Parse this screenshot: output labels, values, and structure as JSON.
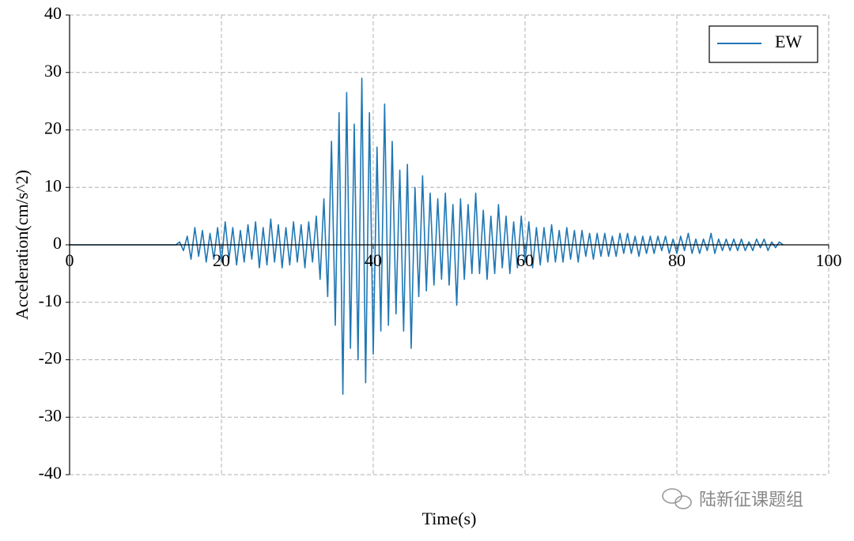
{
  "chart_data": {
    "type": "line",
    "xlabel": "Time(s)",
    "ylabel": "Acceleration(cm/s^2)",
    "watermark": "陆新征课题组",
    "xlim": [
      0,
      100
    ],
    "xticks": [
      0,
      20,
      40,
      60,
      80,
      100
    ],
    "ylim": [
      -40,
      40
    ],
    "yticks": [
      -40,
      -30,
      -20,
      -10,
      0,
      10,
      20,
      30,
      40
    ],
    "grid": true,
    "legend": "upper right",
    "x": [
      0,
      0.5,
      1,
      1.5,
      2,
      2.5,
      3,
      3.5,
      4,
      4.5,
      5,
      5.5,
      6,
      6.5,
      7,
      7.5,
      8,
      8.5,
      9,
      9.5,
      10,
      10.5,
      11,
      11.5,
      12,
      12.5,
      13,
      13.5,
      14,
      14.5,
      15,
      15.5,
      16,
      16.5,
      17,
      17.5,
      18,
      18.5,
      19,
      19.5,
      20,
      20.5,
      21,
      21.5,
      22,
      22.5,
      23,
      23.5,
      24,
      24.5,
      25,
      25.5,
      26,
      26.5,
      27,
      27.5,
      28,
      28.5,
      29,
      29.5,
      30,
      30.5,
      31,
      31.5,
      32,
      32.5,
      33,
      33.5,
      34,
      34.5,
      35,
      35.5,
      36,
      36.5,
      37,
      37.5,
      38,
      38.5,
      39,
      39.5,
      40,
      40.5,
      41,
      41.5,
      42,
      42.5,
      43,
      43.5,
      44,
      44.5,
      45,
      45.5,
      46,
      46.5,
      47,
      47.5,
      48,
      48.5,
      49,
      49.5,
      50,
      50.5,
      51,
      51.5,
      52,
      52.5,
      53,
      53.5,
      54,
      54.5,
      55,
      55.5,
      56,
      56.5,
      57,
      57.5,
      58,
      58.5,
      59,
      59.5,
      60,
      60.5,
      61,
      61.5,
      62,
      62.5,
      63,
      63.5,
      64,
      64.5,
      65,
      65.5,
      66,
      66.5,
      67,
      67.5,
      68,
      68.5,
      69,
      69.5,
      70,
      70.5,
      71,
      71.5,
      72,
      72.5,
      73,
      73.5,
      74,
      74.5,
      75,
      75.5,
      76,
      76.5,
      77,
      77.5,
      78,
      78.5,
      79,
      79.5,
      80,
      80.5,
      81,
      81.5,
      82,
      82.5,
      83,
      83.5,
      84,
      84.5,
      85,
      85.5,
      86,
      86.5,
      87,
      87.5,
      88,
      88.5,
      89,
      89.5,
      90,
      90.5,
      91,
      91.5,
      92,
      92.5,
      93,
      93.5,
      94
    ],
    "series": [
      {
        "name": "EW",
        "color": "#1f77b4",
        "values": [
          0,
          0,
          0,
          0,
          0,
          0,
          0,
          0,
          0,
          0,
          0,
          0,
          0,
          0,
          0,
          0,
          0,
          0,
          0,
          0,
          0,
          0,
          0,
          0,
          0,
          0,
          0,
          0,
          0,
          0.5,
          -1,
          1.5,
          -2.5,
          3,
          -2,
          2.5,
          -3,
          2,
          -2.5,
          3,
          -3,
          4,
          -2.5,
          3,
          -3.5,
          2.5,
          -3,
          3.5,
          -2.5,
          4,
          -4,
          3,
          -3.5,
          4.5,
          -3,
          3.5,
          -4,
          3,
          -3.5,
          4,
          -3,
          3.5,
          -4,
          4,
          -3,
          5,
          -6,
          8,
          -9,
          18,
          -14,
          23,
          -26,
          26.5,
          -18,
          21,
          -20,
          29,
          -24,
          23,
          -19,
          17,
          -15,
          24.5,
          -14,
          18,
          -12,
          13,
          -15,
          14,
          -18,
          10,
          -9,
          12,
          -8,
          9,
          -7,
          8,
          -6,
          9,
          -7,
          7,
          -10.5,
          8,
          -6,
          7,
          -5,
          9,
          -5,
          6,
          -6,
          5,
          -5,
          7,
          -4,
          5,
          -5,
          4,
          -4,
          5,
          -3,
          4,
          -4,
          3,
          -3.5,
          3,
          -3,
          3.5,
          -3,
          2.5,
          -3,
          3,
          -2.5,
          2.5,
          -3,
          2.5,
          -2,
          2,
          -2.5,
          2,
          -2,
          2,
          -2,
          1.5,
          -2,
          2,
          -1.5,
          2,
          -1.5,
          1.5,
          -2,
          1.5,
          -1.5,
          1.5,
          -1.5,
          1.5,
          -1,
          1.5,
          -1.5,
          1,
          -1.5,
          1.5,
          -1,
          2,
          -1.5,
          1,
          -1.5,
          1,
          -1,
          2,
          -1.5,
          1,
          -1,
          1,
          -1,
          1,
          -1,
          1,
          -1,
          0.5,
          -1,
          1,
          -0.5,
          1,
          -1,
          0.5,
          -0.5,
          0.5,
          0
        ]
      }
    ]
  }
}
